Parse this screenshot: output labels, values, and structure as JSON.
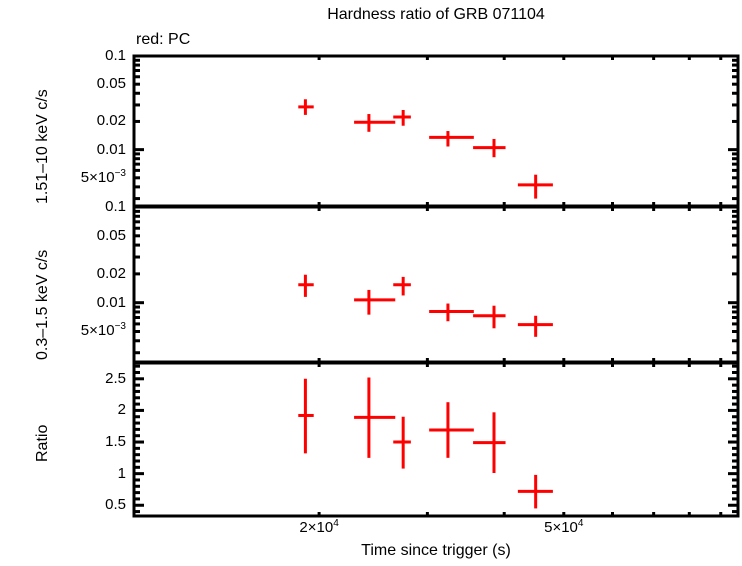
{
  "header": {
    "title": "Hardness ratio of GRB 071104",
    "legend_note": "red: PC"
  },
  "axes": {
    "xlabel": "Time since trigger (s)",
    "xticks": [
      {
        "label_base": "2×10",
        "label_exp": "4",
        "value": 20000
      },
      {
        "label_base": "5×10",
        "label_exp": "4",
        "value": 50000
      }
    ],
    "panels": [
      {
        "name": "hard-band",
        "ylabel": "1.51–10 keV c/s",
        "scale": "log",
        "ticks": [
          {
            "label": "0.1",
            "value": 0.1
          },
          {
            "label": "0.05",
            "value": 0.05
          },
          {
            "label": "0.02",
            "value": 0.02
          },
          {
            "label": "0.01",
            "value": 0.01
          },
          {
            "label_base": "5×10",
            "label_exp": "−3",
            "value": 0.005
          }
        ]
      },
      {
        "name": "soft-band",
        "ylabel": "0.3–1.5 keV c/s",
        "scale": "log",
        "ticks": [
          {
            "label": "0.1",
            "value": 0.1
          },
          {
            "label": "0.05",
            "value": 0.05
          },
          {
            "label": "0.02",
            "value": 0.02
          },
          {
            "label": "0.01",
            "value": 0.01
          },
          {
            "label_base": "5×10",
            "label_exp": "−3",
            "value": 0.005
          }
        ]
      },
      {
        "name": "ratio",
        "ylabel": "Ratio",
        "scale": "linear",
        "ticks": [
          {
            "label": "2.5",
            "value": 2.5
          },
          {
            "label": "2",
            "value": 2
          },
          {
            "label": "1.5",
            "value": 1.5
          },
          {
            "label": "1",
            "value": 1
          },
          {
            "label": "0.5",
            "value": 0.5
          }
        ]
      }
    ]
  },
  "colors": {
    "series": "#ff0000",
    "axes": "#000000",
    "background": "#ffffff"
  },
  "chart_data": {
    "type": "scatter",
    "title": "Hardness ratio of GRB 071104",
    "subtitle": "red: PC",
    "xlabel": "Time since trigger (s)",
    "xscale": "log",
    "xlim": [
      10000,
      96000
    ],
    "grid": false,
    "legend": "text annotation top-left: red: PC",
    "panels": [
      {
        "ylabel": "1.51–10 keV c/s",
        "yscale": "log",
        "ylim": [
          0.0025,
          0.1
        ],
        "series": [
          {
            "name": "PC",
            "color": "#ff0000",
            "points": [
              {
                "x": 19000,
                "xlo": 18500,
                "xhi": 19600,
                "y": 0.0286,
                "ylo": 0.0235,
                "yhi": 0.0345
              },
              {
                "x": 24100,
                "xlo": 22800,
                "xhi": 26600,
                "y": 0.0196,
                "ylo": 0.0155,
                "yhi": 0.024
              },
              {
                "x": 27400,
                "xlo": 26400,
                "xhi": 28200,
                "y": 0.0223,
                "ylo": 0.018,
                "yhi": 0.0265
              },
              {
                "x": 32400,
                "xlo": 30200,
                "xhi": 35700,
                "y": 0.0135,
                "ylo": 0.0108,
                "yhi": 0.0158
              },
              {
                "x": 38500,
                "xlo": 35600,
                "xhi": 40200,
                "y": 0.0105,
                "ylo": 0.0083,
                "yhi": 0.013
              },
              {
                "x": 45000,
                "xlo": 42100,
                "xhi": 48000,
                "y": 0.0042,
                "ylo": 0.003,
                "yhi": 0.0054
              }
            ]
          }
        ]
      },
      {
        "ylabel": "0.3–1.5 keV c/s",
        "yscale": "log",
        "ylim": [
          0.0024,
          0.1
        ],
        "series": [
          {
            "name": "PC",
            "color": "#ff0000",
            "points": [
              {
                "x": 19000,
                "xlo": 18500,
                "xhi": 19600,
                "y": 0.0154,
                "ylo": 0.0115,
                "yhi": 0.0196
              },
              {
                "x": 24100,
                "xlo": 22800,
                "xhi": 26600,
                "y": 0.0107,
                "ylo": 0.0075,
                "yhi": 0.0136
              },
              {
                "x": 27400,
                "xlo": 26400,
                "xhi": 28200,
                "y": 0.0154,
                "ylo": 0.0119,
                "yhi": 0.0186
              },
              {
                "x": 32400,
                "xlo": 30200,
                "xhi": 35700,
                "y": 0.0081,
                "ylo": 0.0064,
                "yhi": 0.0098
              },
              {
                "x": 38500,
                "xlo": 35600,
                "xhi": 40200,
                "y": 0.0073,
                "ylo": 0.0054,
                "yhi": 0.0093
              },
              {
                "x": 45000,
                "xlo": 42100,
                "xhi": 48000,
                "y": 0.0059,
                "ylo": 0.0044,
                "yhi": 0.0073
              }
            ]
          }
        ]
      },
      {
        "ylabel": "Ratio",
        "yscale": "linear",
        "ylim": [
          0.33,
          2.75
        ],
        "series": [
          {
            "name": "PC",
            "color": "#ff0000",
            "points": [
              {
                "x": 19000,
                "xlo": 18500,
                "xhi": 19600,
                "y": 1.92,
                "ylo": 1.32,
                "yhi": 2.5
              },
              {
                "x": 24100,
                "xlo": 22800,
                "xhi": 26600,
                "y": 1.89,
                "ylo": 1.25,
                "yhi": 2.52
              },
              {
                "x": 27400,
                "xlo": 26400,
                "xhi": 28200,
                "y": 1.5,
                "ylo": 1.08,
                "yhi": 1.9
              },
              {
                "x": 32400,
                "xlo": 30200,
                "xhi": 35700,
                "y": 1.69,
                "ylo": 1.25,
                "yhi": 2.13
              },
              {
                "x": 38500,
                "xlo": 35600,
                "xhi": 40200,
                "y": 1.49,
                "ylo": 1.01,
                "yhi": 1.97
              },
              {
                "x": 45000,
                "xlo": 42100,
                "xhi": 48000,
                "y": 0.72,
                "ylo": 0.45,
                "yhi": 0.98
              }
            ]
          }
        ]
      }
    ]
  }
}
